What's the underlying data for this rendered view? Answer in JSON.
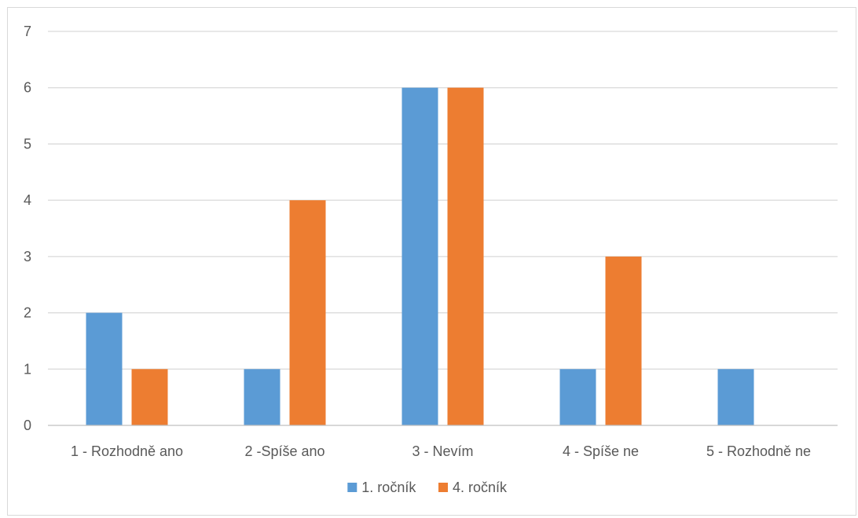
{
  "chart_data": {
    "type": "bar",
    "categories": [
      "1 - Rozhodně ano",
      "2 -Spíše ano",
      "3 - Nevím",
      "4 - Spíše ne",
      "5 - Rozhodně ne"
    ],
    "series": [
      {
        "name": "1. ročník",
        "values": [
          2,
          1,
          6,
          1,
          1
        ],
        "color": "#5b9bd5"
      },
      {
        "name": "4. ročník",
        "values": [
          1,
          4,
          6,
          3,
          0
        ],
        "color": "#ed7d31"
      }
    ],
    "ylim": [
      0,
      7
    ],
    "yticks": [
      0,
      1,
      2,
      3,
      4,
      5,
      6,
      7
    ],
    "grid": true,
    "legend_position": "bottom-center",
    "colors": {
      "grid": "#d9d9d9",
      "axis": "#bfbfbf",
      "text": "#595959"
    }
  }
}
